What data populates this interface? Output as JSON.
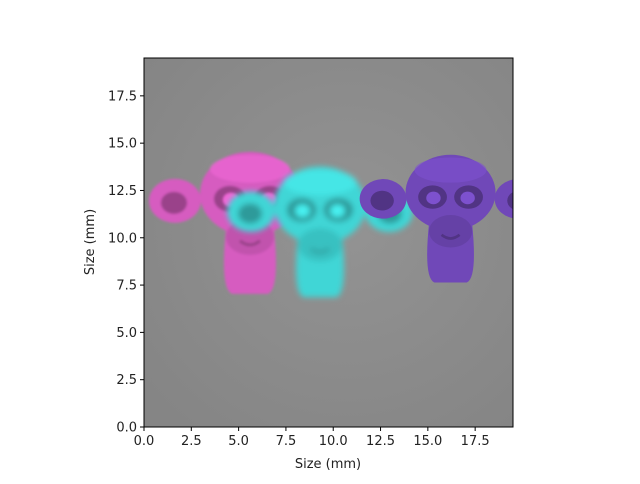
{
  "chart_data": {
    "type": "image",
    "xlabel": "Size (mm)",
    "ylabel": "Size (mm)",
    "xlim": [
      0,
      19.5
    ],
    "ylim": [
      0,
      19.5
    ],
    "xticks": [
      0.0,
      2.5,
      5.0,
      7.5,
      10.0,
      12.5,
      15.0,
      17.5
    ],
    "yticks": [
      0.0,
      2.5,
      5.0,
      7.5,
      10.0,
      12.5,
      15.0,
      17.5
    ],
    "xtick_labels": [
      "0.0",
      "2.5",
      "5.0",
      "7.5",
      "10.0",
      "12.5",
      "15.0",
      "17.5"
    ],
    "ytick_labels": [
      "0.0",
      "2.5",
      "5.0",
      "7.5",
      "10.0",
      "12.5",
      "15.0",
      "17.5"
    ],
    "background_color": "#8a8a8a",
    "objects": [
      {
        "name": "monkey-head",
        "color": "#d65cc0",
        "center": [
          5.6,
          11.0
        ],
        "blurred": true
      },
      {
        "name": "monkey-head",
        "color": "#3fd6d6",
        "center": [
          9.3,
          10.5
        ],
        "blurred": true
      },
      {
        "name": "monkey-head",
        "color": "#7048b8",
        "center": [
          16.2,
          11.2
        ],
        "blurred": false
      }
    ]
  }
}
